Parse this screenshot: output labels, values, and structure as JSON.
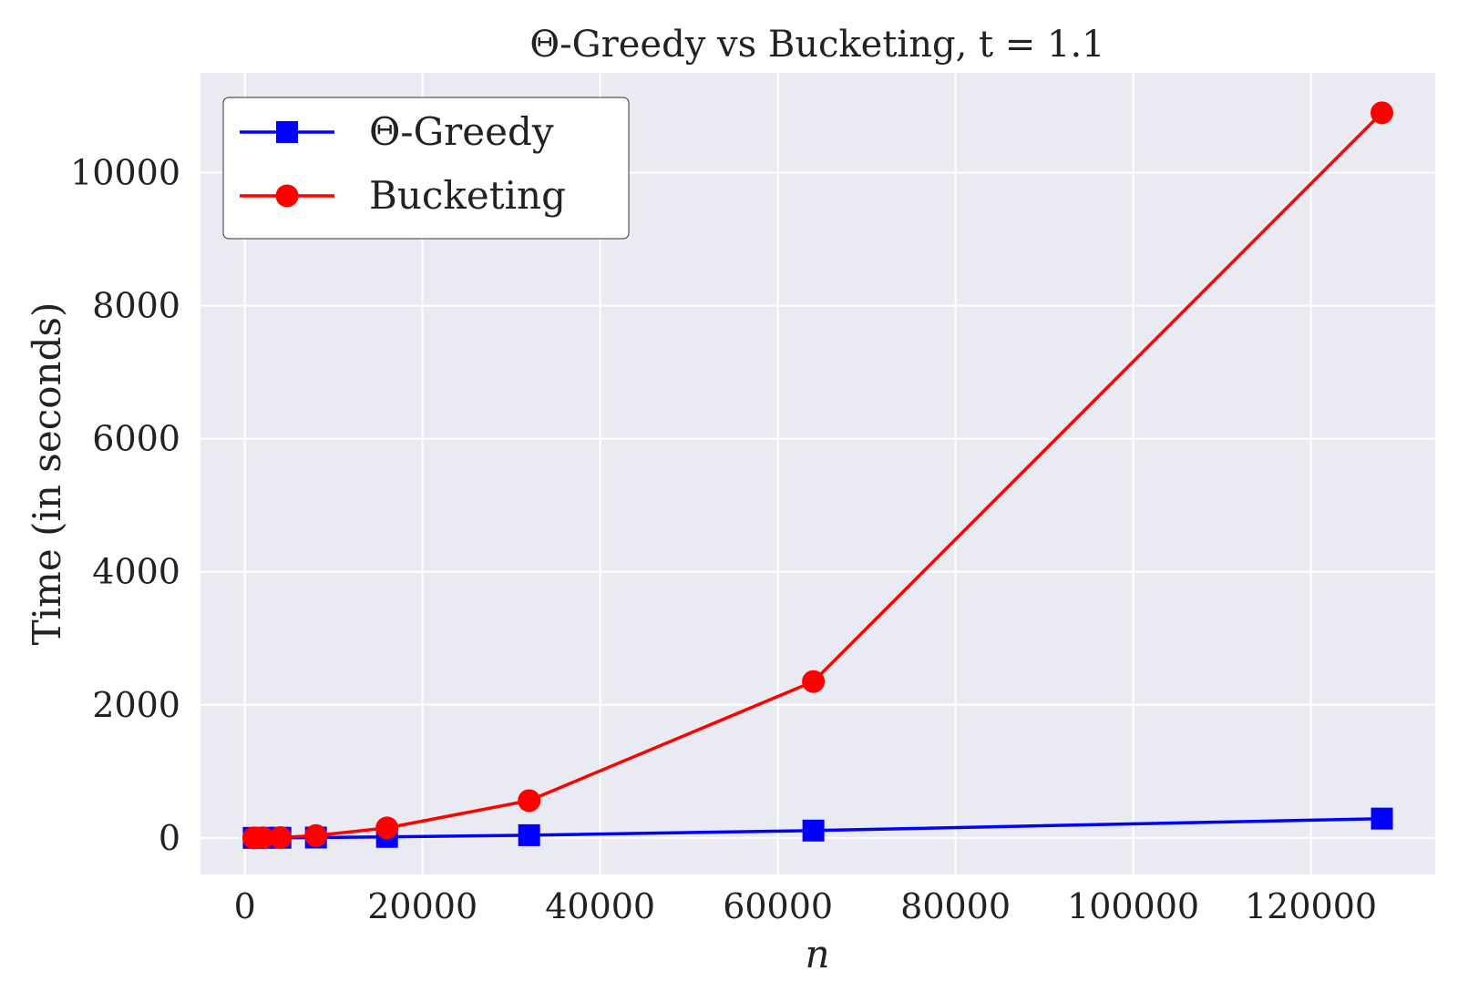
{
  "chart_data": {
    "type": "line",
    "title": "Θ-Greedy vs Bucketing, t = 1.1",
    "xlabel": "n",
    "ylabel": "Time (in seconds)",
    "xlim": [
      -5000,
      134000
    ],
    "ylim": [
      -550,
      11500
    ],
    "xticks": [
      "0",
      "20000",
      "40000",
      "60000",
      "80000",
      "100000",
      "120000"
    ],
    "yticks": [
      "0",
      "2000",
      "4000",
      "6000",
      "8000",
      "10000"
    ],
    "xtick_values": [
      0,
      20000,
      40000,
      60000,
      80000,
      100000,
      120000
    ],
    "ytick_values": [
      0,
      2000,
      4000,
      6000,
      8000,
      10000
    ],
    "grid": true,
    "legend_position": "top-left",
    "series": [
      {
        "name": "Θ-Greedy",
        "color": "#0000ff",
        "marker": "square",
        "x": [
          1000,
          2000,
          4000,
          8000,
          16000,
          32000,
          64000,
          128000
        ],
        "y": [
          0,
          1,
          2,
          5,
          15,
          40,
          110,
          290
        ]
      },
      {
        "name": "Bucketing",
        "color": "#ff0000",
        "marker": "circle",
        "x": [
          1000,
          2000,
          4000,
          8000,
          16000,
          32000,
          64000,
          128000
        ],
        "y": [
          0,
          1,
          5,
          35,
          150,
          560,
          2350,
          10900
        ]
      }
    ]
  }
}
